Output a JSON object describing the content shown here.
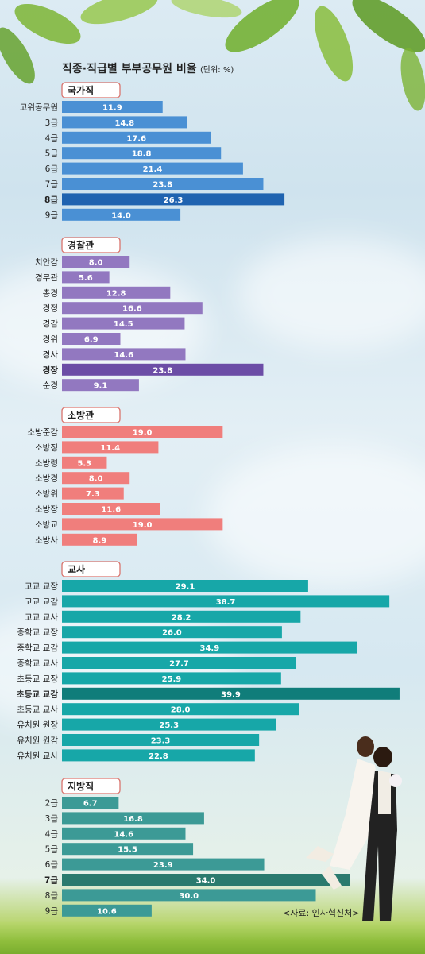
{
  "title": "직종·직급별 부부공무원 비율",
  "unit": "(단위: %)",
  "source": "<자료: 인사혁신처>",
  "colors": {
    "national": "#4a90d4",
    "national_hl": "#1f63b0",
    "police": "#9278c0",
    "police_hl": "#6c4da6",
    "fire": "#f07e7c",
    "fire_hl": "#f07e7c",
    "teacher": "#17a7a8",
    "teacher_hl": "#107d7a",
    "local": "#3c9a96",
    "local_hl": "#2a7a6e",
    "label_border": "#d9746d"
  },
  "chart_data": {
    "type": "bar",
    "orientation": "horizontal",
    "title": "직종·직급별 부부공무원 비율",
    "unit": "(단위: %)",
    "xlim": [
      0,
      40
    ],
    "grid": false,
    "groups": [
      {
        "name": "국가직",
        "color_key": "national",
        "categories": [
          "고위공무원",
          "3급",
          "4급",
          "5급",
          "6급",
          "7급",
          "8급",
          "9급"
        ],
        "values": [
          11.9,
          14.8,
          17.6,
          18.8,
          21.4,
          23.8,
          26.3,
          14.0
        ],
        "labels": [
          "11.9",
          "14.8",
          "17.6",
          "18.8",
          "21.4",
          "23.8",
          "26.3",
          "14.0"
        ],
        "highlight": "8급"
      },
      {
        "name": "경찰관",
        "color_key": "police",
        "categories": [
          "치안감",
          "경무관",
          "총경",
          "경정",
          "경감",
          "경위",
          "경사",
          "경장",
          "순경"
        ],
        "values": [
          8.0,
          5.6,
          12.8,
          16.6,
          14.5,
          6.9,
          14.6,
          23.8,
          9.1
        ],
        "labels": [
          "8.0",
          "5.6",
          "12.8",
          "16.6",
          "14.5",
          "6.9",
          "14.6",
          "23.8",
          "9.1"
        ],
        "highlight": "경장"
      },
      {
        "name": "소방관",
        "color_key": "fire",
        "categories": [
          "소방준감",
          "소방정",
          "소방령",
          "소방경",
          "소방위",
          "소방장",
          "소방교",
          "소방사"
        ],
        "values": [
          19.0,
          11.4,
          5.3,
          8.0,
          7.3,
          11.6,
          19.0,
          8.9
        ],
        "labels": [
          "19.0",
          "11.4",
          "5.3",
          "8.0",
          "7.3",
          "11.6",
          "19.0",
          "8.9"
        ],
        "highlight": null
      },
      {
        "name": "교사",
        "color_key": "teacher",
        "categories": [
          "고교 교장",
          "고교 교감",
          "고교 교사",
          "중학교 교장",
          "중학교 교감",
          "중학교 교사",
          "초등교 교장",
          "초등교 교감",
          "초등교 교사",
          "유치원 원장",
          "유치원 원감",
          "유치원 교사"
        ],
        "values": [
          29.1,
          38.7,
          28.2,
          26.0,
          34.9,
          27.7,
          25.9,
          39.9,
          28.0,
          25.3,
          23.3,
          22.8
        ],
        "labels": [
          "29.1",
          "38.7",
          "28.2",
          "26.0",
          "34.9",
          "27.7",
          "25.9",
          "39.9",
          "28.0",
          "25.3",
          "23.3",
          "22.8"
        ],
        "highlight": "초등교 교감"
      },
      {
        "name": "지방직",
        "color_key": "local",
        "categories": [
          "2급",
          "3급",
          "4급",
          "5급",
          "6급",
          "7급",
          "8급",
          "9급"
        ],
        "values": [
          6.7,
          16.8,
          14.6,
          15.5,
          23.9,
          34.0,
          30.0,
          10.6
        ],
        "labels": [
          "6.7",
          "16.8",
          "14.6",
          "15.5",
          "23.9",
          "34.0",
          "30.0",
          "10.6"
        ],
        "highlight": "7급"
      }
    ]
  }
}
